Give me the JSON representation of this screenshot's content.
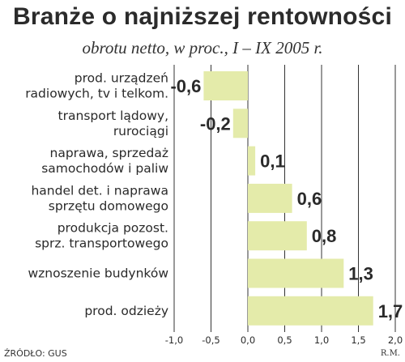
{
  "colors": {
    "bar": "#e4ebaa",
    "grid": "#333333"
  },
  "chart_data": {
    "type": "bar",
    "orientation": "horizontal",
    "title": "Branże o najniższej rentowności",
    "subtitle": "obrotu netto, w proc., I – IX 2005 r.",
    "categories": [
      [
        "prod. urządzeń",
        "radiowych, tv i telkom."
      ],
      [
        "transport lądowy,",
        "rurociągi"
      ],
      [
        "naprawa, sprzedaż",
        "samochodów i paliw"
      ],
      [
        "handel det. i naprawa",
        "sprzętu domowego"
      ],
      [
        "produkcja pozost.",
        "sprz. transportowego"
      ],
      [
        "wznoszenie budynków"
      ],
      [
        "prod. odzieży"
      ]
    ],
    "values": [
      -0.6,
      -0.2,
      0.1,
      0.6,
      0.8,
      1.3,
      1.7
    ],
    "value_labels": [
      "-0,6",
      "-0,2",
      "0,1",
      "0,6",
      "0,8",
      "1,3",
      "1,7"
    ],
    "xlim": [
      -1.0,
      2.0
    ],
    "x_ticks": [
      -1.0,
      -0.5,
      0.0,
      0.5,
      1.0,
      1.5,
      2.0
    ],
    "x_tick_labels": [
      "-1,0",
      "-0,5",
      "0,0",
      "0,5",
      "1,0",
      "1,5",
      "2,0"
    ],
    "grid": true
  },
  "source": "ŹRÓDŁO: GUS",
  "author": "R.M."
}
